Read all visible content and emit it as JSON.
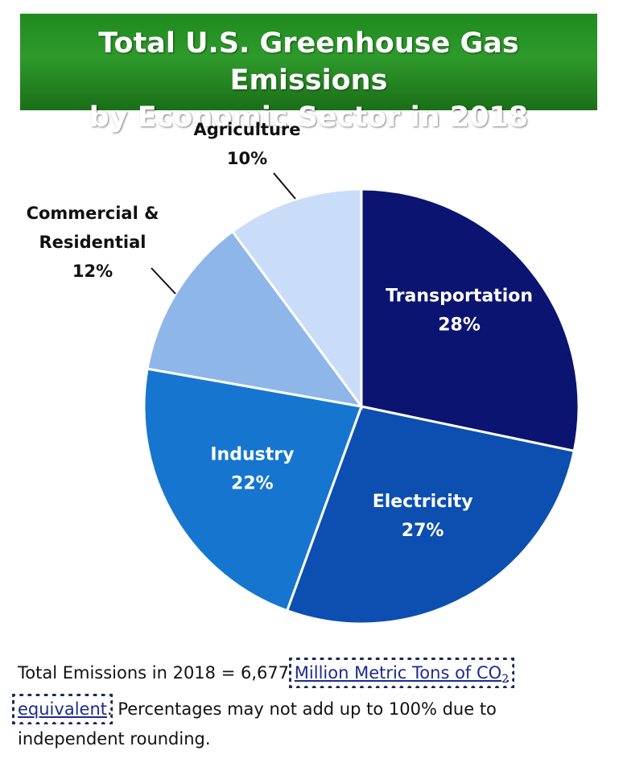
{
  "title": {
    "line1": "Total U.S. Greenhouse Gas Emissions",
    "line2": "by Economic Sector in 2018"
  },
  "chart_data": {
    "type": "pie",
    "start_angle_deg": 0,
    "direction": "clockwise",
    "slices": [
      {
        "name": "Transportation",
        "value": 28,
        "label": "28%",
        "color": "#0b1470",
        "text_color": "#ffffff",
        "label_position": "inside",
        "name_lines": [
          "Transportation"
        ]
      },
      {
        "name": "Electricity",
        "value": 27,
        "label": "27%",
        "color": "#0d4fb0",
        "text_color": "#ffffff",
        "label_position": "inside",
        "name_lines": [
          "Electricity"
        ]
      },
      {
        "name": "Industry",
        "value": 22,
        "label": "22%",
        "color": "#1676cf",
        "text_color": "#ffffff",
        "label_position": "inside",
        "name_lines": [
          "Industry"
        ]
      },
      {
        "name": "Commercial & Residential",
        "value": 12,
        "label": "12%",
        "color": "#8eb6e8",
        "text_color": "#111111",
        "label_position": "outside",
        "name_lines": [
          "Commercial &",
          "Residential"
        ]
      },
      {
        "name": "Agriculture",
        "value": 10,
        "label": "10%",
        "color": "#c9dcf8",
        "text_color": "#111111",
        "label_position": "outside",
        "name_lines": [
          "Agriculture"
        ]
      }
    ]
  },
  "footnote": {
    "prefix": "Total Emissions in 2018 = 6,677 ",
    "link_text": "Million Metric Tons of CO",
    "link_sub": "2",
    "link_text2": "equivalent",
    "suffix": ". Percentages may not add up to 100% due to independent rounding."
  }
}
